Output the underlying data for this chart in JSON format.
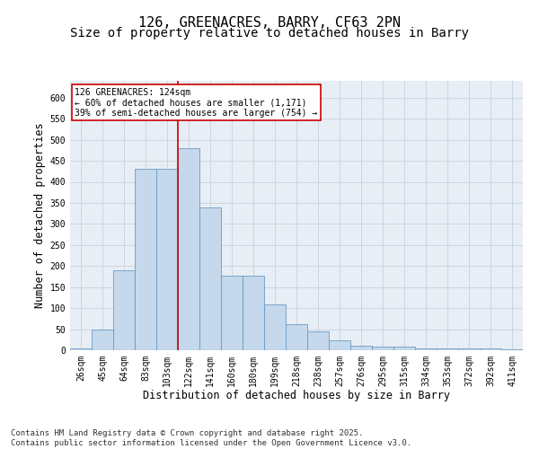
{
  "title": "126, GREENACRES, BARRY, CF63 2PN",
  "subtitle": "Size of property relative to detached houses in Barry",
  "xlabel": "Distribution of detached houses by size in Barry",
  "ylabel": "Number of detached properties",
  "categories": [
    "26sqm",
    "45sqm",
    "64sqm",
    "83sqm",
    "103sqm",
    "122sqm",
    "141sqm",
    "160sqm",
    "180sqm",
    "199sqm",
    "218sqm",
    "238sqm",
    "257sqm",
    "276sqm",
    "295sqm",
    "315sqm",
    "334sqm",
    "353sqm",
    "372sqm",
    "392sqm",
    "411sqm"
  ],
  "bar_heights": [
    5,
    50,
    190,
    430,
    430,
    480,
    340,
    178,
    178,
    108,
    62,
    44,
    24,
    11,
    8,
    8,
    5,
    4,
    4,
    5,
    3
  ],
  "bar_color": "#c5d8ec",
  "bar_edge_color": "#6a9bc4",
  "grid_color": "#cdd5e0",
  "background_color": "#e8eef5",
  "vline_color": "#cc0000",
  "vline_x": 4.5,
  "annotation_text": "126 GREENACRES: 124sqm\n← 60% of detached houses are smaller (1,171)\n39% of semi-detached houses are larger (754) →",
  "annotation_box_facecolor": "#ffffff",
  "annotation_box_edgecolor": "#cc0000",
  "ylim": [
    0,
    640
  ],
  "yticks": [
    0,
    50,
    100,
    150,
    200,
    250,
    300,
    350,
    400,
    450,
    500,
    550,
    600
  ],
  "footer": "Contains HM Land Registry data © Crown copyright and database right 2025.\nContains public sector information licensed under the Open Government Licence v3.0.",
  "title_fontsize": 11,
  "subtitle_fontsize": 10,
  "axis_label_fontsize": 8.5,
  "tick_fontsize": 7,
  "annot_fontsize": 7,
  "footer_fontsize": 6.5
}
